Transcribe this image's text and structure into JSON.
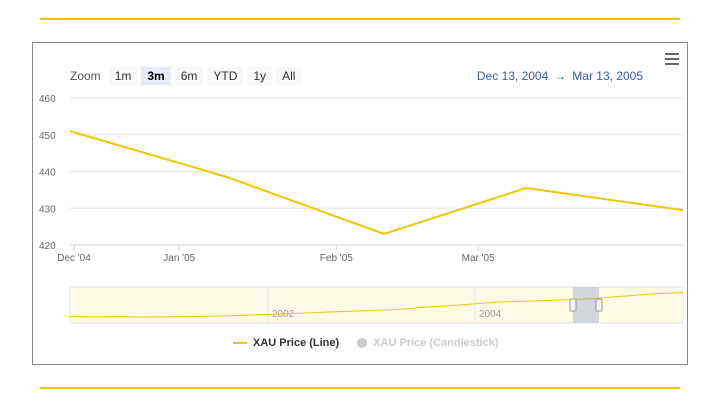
{
  "toolbar": {
    "zoom_label": "Zoom",
    "zoom_buttons": [
      "1m",
      "3m",
      "6m",
      "YTD",
      "1y",
      "All"
    ],
    "active_zoom": "3m",
    "range_from": "Dec 13, 2004",
    "range_arrow": "→",
    "range_to": "Mar 13, 2005",
    "menu_icon": "hamburger-menu-icon"
  },
  "legend": {
    "line_series": "XAU Price (Line)",
    "candle_series": "XAU Price (Candlestick)"
  },
  "colors": {
    "series": "#f2c500",
    "inactive": "#cccccc",
    "range_text": "#335cad"
  },
  "chart_data": {
    "type": "line",
    "x": [
      "2004-12-13",
      "2005-01-13",
      "2005-02-13",
      "2005-03-13",
      "2005-04-13"
    ],
    "series": [
      {
        "name": "XAU Price (Line)",
        "values": [
          451,
          438.5,
          423,
          435.5,
          429.5
        ]
      }
    ],
    "xticks": [
      "Dec '04",
      "Jan '05",
      "Feb '05",
      "Mar '05"
    ],
    "yticks": [
      420,
      430,
      440,
      450,
      460
    ],
    "ylim": [
      420,
      460
    ],
    "navigator": {
      "labels": [
        "2002",
        "2004"
      ],
      "values": [
        320,
        318,
        319,
        317,
        318,
        320,
        322,
        325,
        330,
        335,
        340,
        345,
        350,
        355,
        360,
        372,
        380,
        390,
        400,
        405,
        410,
        415,
        420,
        430,
        440,
        450,
        455
      ],
      "selection": [
        "Dec 13, 2004",
        "Mar 13, 2005"
      ]
    }
  }
}
